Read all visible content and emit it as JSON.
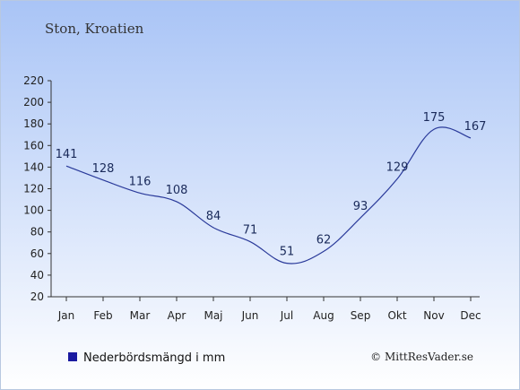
{
  "chart_data": {
    "type": "line",
    "title": "Ston, Kroatien",
    "categories": [
      "Jan",
      "Feb",
      "Mar",
      "Apr",
      "Maj",
      "Jun",
      "Jul",
      "Aug",
      "Sep",
      "Okt",
      "Nov",
      "Dec"
    ],
    "series": [
      {
        "name": "Nederbördsmängd i mm",
        "values": [
          141,
          128,
          116,
          108,
          84,
          71,
          51,
          62,
          93,
          129,
          175,
          167
        ]
      }
    ],
    "ylim": [
      20,
      220
    ],
    "yticks": [
      20,
      40,
      60,
      80,
      100,
      120,
      140,
      160,
      180,
      200,
      220
    ],
    "grid": false,
    "legend_position": "bottom-left",
    "line_color": "#2a3a9a",
    "legend_marker_color": "#1a1aa0",
    "background_top_color": "#a9c4f6",
    "background_bottom_color": "#ffffff"
  },
  "credit": "© MittResVader.se"
}
